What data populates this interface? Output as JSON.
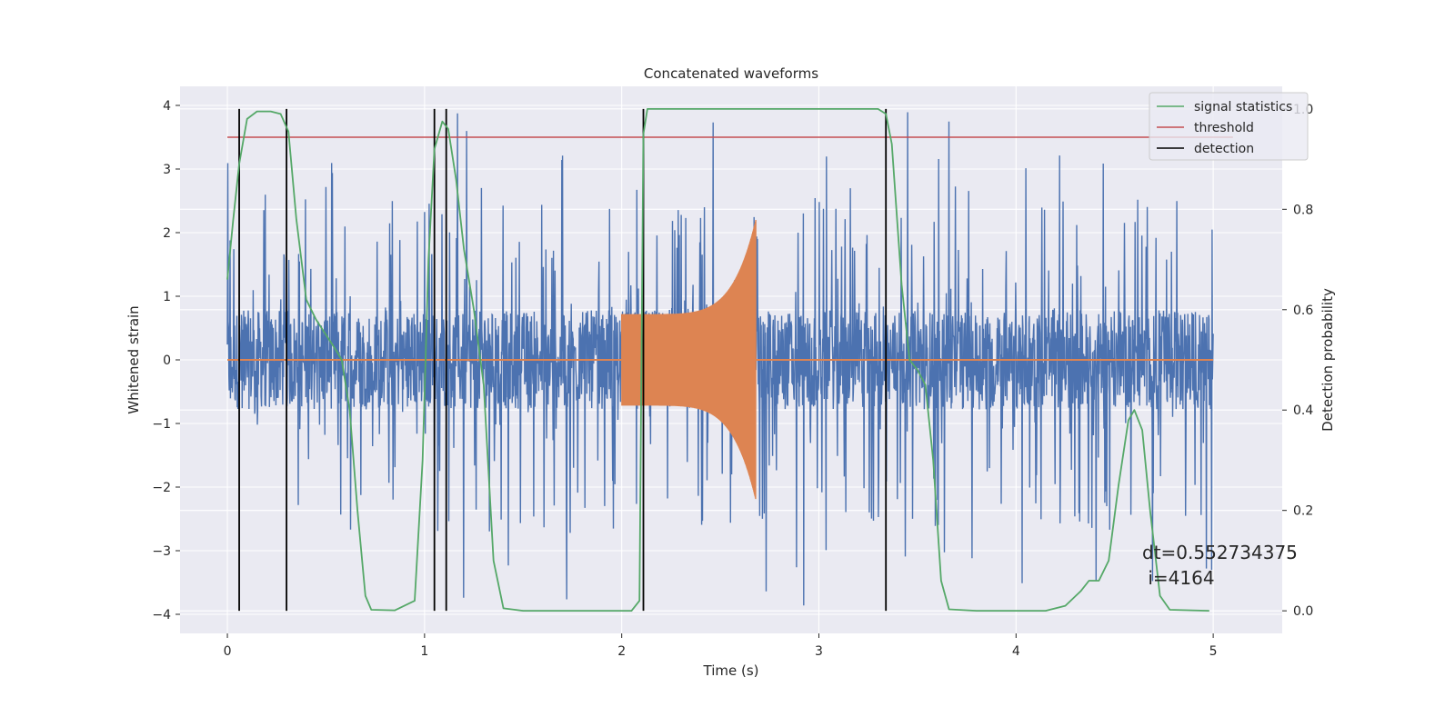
{
  "chart_data": {
    "type": "line",
    "title": "Concatenated waveforms",
    "xlabel": "Time (s)",
    "ylabel": "Whitened strain",
    "y2label": "Detection probability",
    "xlim": [
      -0.24,
      5.35
    ],
    "ylim": [
      -4.3,
      4.3
    ],
    "y2lim": [
      -0.045,
      1.045
    ],
    "xticks": [
      0,
      1,
      2,
      3,
      4,
      5
    ],
    "yticks": [
      -4,
      -3,
      -2,
      -1,
      0,
      1,
      2,
      3,
      4
    ],
    "y2ticks": [
      0.0,
      0.2,
      0.4,
      0.6,
      0.8,
      1.0
    ],
    "y2tick_labels": [
      "0.0",
      "0.2",
      "0.4",
      "0.6",
      "0.8",
      "1.0"
    ],
    "grid": true,
    "legend_position": "top-right",
    "legend": [
      "signal statistics",
      "threshold",
      "detection"
    ],
    "strain": {
      "color": "#4c72b0",
      "x_range": [
        0,
        5
      ],
      "core_amplitude": 0.78,
      "spike_max": 3.9,
      "min": -3.9
    },
    "injected_waveform": {
      "color": "#dd8452",
      "x_range": [
        2.0,
        2.68
      ],
      "amplitude_start": 0.72,
      "amplitude_peak": 2.2,
      "baseline": 0.0
    },
    "signal_statistics": {
      "color": "#55a868",
      "axis": "right",
      "points": [
        [
          0.0,
          0.66
        ],
        [
          0.03,
          0.78
        ],
        [
          0.06,
          0.89
        ],
        [
          0.1,
          0.98
        ],
        [
          0.15,
          0.995
        ],
        [
          0.22,
          0.995
        ],
        [
          0.27,
          0.99
        ],
        [
          0.31,
          0.955
        ],
        [
          0.35,
          0.78
        ],
        [
          0.4,
          0.62
        ],
        [
          0.45,
          0.58
        ],
        [
          0.5,
          0.55
        ],
        [
          0.55,
          0.52
        ],
        [
          0.58,
          0.5
        ],
        [
          0.62,
          0.4
        ],
        [
          0.66,
          0.2
        ],
        [
          0.7,
          0.03
        ],
        [
          0.73,
          0.002
        ],
        [
          0.85,
          0.001
        ],
        [
          0.95,
          0.02
        ],
        [
          0.99,
          0.3
        ],
        [
          1.02,
          0.7
        ],
        [
          1.05,
          0.92
        ],
        [
          1.09,
          0.975
        ],
        [
          1.12,
          0.96
        ],
        [
          1.16,
          0.86
        ],
        [
          1.2,
          0.72
        ],
        [
          1.25,
          0.6
        ],
        [
          1.3,
          0.45
        ],
        [
          1.35,
          0.1
        ],
        [
          1.4,
          0.005
        ],
        [
          1.5,
          0.0
        ],
        [
          2.05,
          0.0
        ],
        [
          2.09,
          0.02
        ],
        [
          2.11,
          0.95
        ],
        [
          2.13,
          1.0
        ],
        [
          2.5,
          1.0
        ],
        [
          3.3,
          1.0
        ],
        [
          3.34,
          0.99
        ],
        [
          3.37,
          0.93
        ],
        [
          3.42,
          0.65
        ],
        [
          3.46,
          0.5
        ],
        [
          3.5,
          0.48
        ],
        [
          3.54,
          0.45
        ],
        [
          3.58,
          0.3
        ],
        [
          3.62,
          0.06
        ],
        [
          3.66,
          0.003
        ],
        [
          3.8,
          0.0
        ],
        [
          4.15,
          0.0
        ],
        [
          4.25,
          0.01
        ],
        [
          4.33,
          0.04
        ],
        [
          4.37,
          0.06
        ],
        [
          4.42,
          0.06
        ],
        [
          4.47,
          0.1
        ],
        [
          4.52,
          0.25
        ],
        [
          4.57,
          0.38
        ],
        [
          4.6,
          0.4
        ],
        [
          4.64,
          0.36
        ],
        [
          4.68,
          0.2
        ],
        [
          4.73,
          0.03
        ],
        [
          4.78,
          0.002
        ],
        [
          4.98,
          0.0
        ]
      ]
    },
    "threshold": {
      "color": "#c44e52",
      "value": 3.5,
      "x_range": [
        0,
        5.1
      ]
    },
    "detections": {
      "color": "#000000",
      "x": [
        0.06,
        0.3,
        1.05,
        1.11,
        2.11,
        3.34
      ]
    },
    "annotation": {
      "line1": "dt=0.552734375",
      "line2": " i=4164"
    }
  }
}
